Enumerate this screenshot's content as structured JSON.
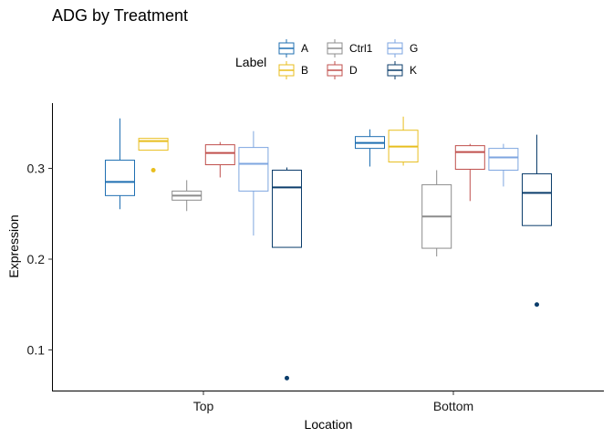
{
  "chart_data": {
    "type": "boxplot",
    "title": "ADG by Treatment",
    "xlabel": "Location",
    "ylabel": "Expression",
    "ylim": [
      0.05,
      0.375
    ],
    "yticks": [
      0.1,
      0.2,
      0.3
    ],
    "ytick_labels": [
      "0.1",
      "0.2",
      "0.3"
    ],
    "categories": [
      "Top",
      "Bottom"
    ],
    "grid": false,
    "legend": {
      "title": "Label",
      "position": "top",
      "entries": [
        "A",
        "B",
        "Ctrl1",
        "D",
        "G",
        "K"
      ]
    },
    "series": [
      {
        "name": "A",
        "color": "#1F6FB2",
        "boxes": [
          {
            "category": "Top",
            "min": 0.255,
            "q1": 0.27,
            "median": 0.285,
            "q3": 0.309,
            "max": 0.355,
            "outliers": []
          },
          {
            "category": "Bottom",
            "min": 0.302,
            "q1": 0.322,
            "median": 0.328,
            "q3": 0.335,
            "max": 0.343,
            "outliers": []
          }
        ]
      },
      {
        "name": "B",
        "color": "#E8BE1E",
        "boxes": [
          {
            "category": "Top",
            "min": 0.32,
            "q1": 0.32,
            "median": 0.33,
            "q3": 0.333,
            "max": 0.333,
            "outliers": [
              0.298
            ]
          },
          {
            "category": "Bottom",
            "min": 0.303,
            "q1": 0.307,
            "median": 0.324,
            "q3": 0.342,
            "max": 0.357,
            "outliers": []
          }
        ]
      },
      {
        "name": "Ctrl1",
        "color": "#8C8C8C",
        "boxes": [
          {
            "category": "Top",
            "min": 0.253,
            "q1": 0.265,
            "median": 0.27,
            "q3": 0.275,
            "max": 0.287,
            "outliers": []
          },
          {
            "category": "Bottom",
            "min": 0.203,
            "q1": 0.212,
            "median": 0.247,
            "q3": 0.282,
            "max": 0.298,
            "outliers": []
          }
        ]
      },
      {
        "name": "D",
        "color": "#C0504D",
        "boxes": [
          {
            "category": "Top",
            "min": 0.29,
            "q1": 0.304,
            "median": 0.317,
            "q3": 0.326,
            "max": 0.329,
            "outliers": []
          },
          {
            "category": "Bottom",
            "min": 0.264,
            "q1": 0.299,
            "median": 0.318,
            "q3": 0.325,
            "max": 0.327,
            "outliers": []
          }
        ]
      },
      {
        "name": "G",
        "color": "#7EA6E0",
        "boxes": [
          {
            "category": "Top",
            "min": 0.226,
            "q1": 0.275,
            "median": 0.305,
            "q3": 0.323,
            "max": 0.341,
            "outliers": []
          },
          {
            "category": "Bottom",
            "min": 0.28,
            "q1": 0.298,
            "median": 0.312,
            "q3": 0.322,
            "max": 0.327,
            "outliers": []
          }
        ]
      },
      {
        "name": "K",
        "color": "#0B3D6B",
        "boxes": [
          {
            "category": "Top",
            "min": 0.213,
            "q1": 0.213,
            "median": 0.279,
            "q3": 0.298,
            "max": 0.301,
            "outliers": [
              0.069
            ]
          },
          {
            "category": "Bottom",
            "min": 0.237,
            "q1": 0.237,
            "median": 0.273,
            "q3": 0.294,
            "max": 0.337,
            "outliers": [
              0.15
            ]
          }
        ]
      }
    ]
  }
}
